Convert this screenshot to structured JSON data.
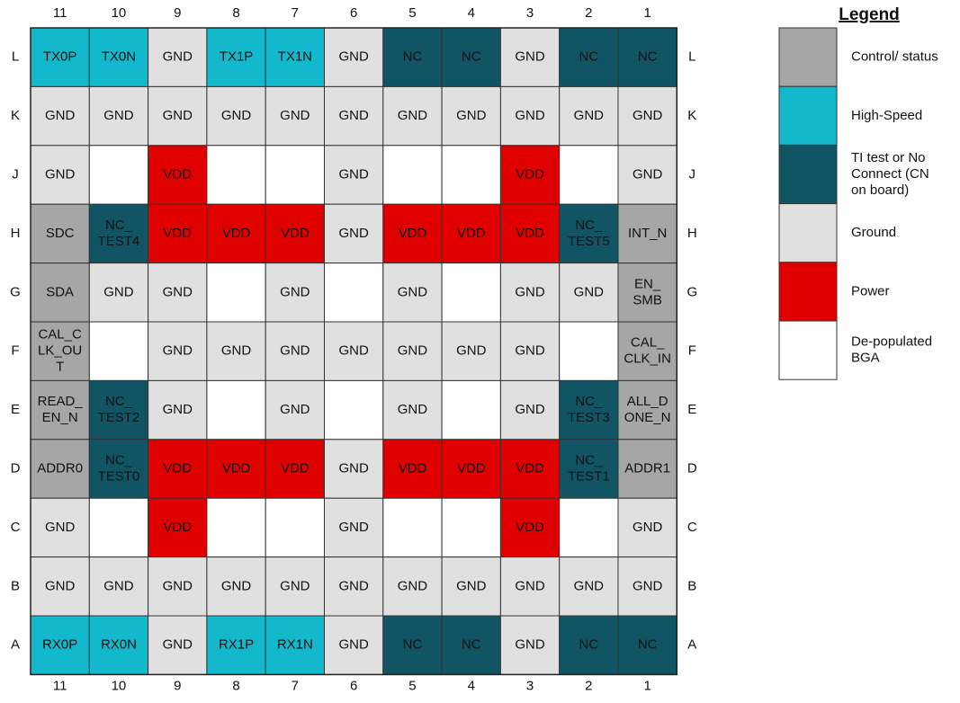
{
  "legend": {
    "title": "Legend",
    "items": [
      {
        "lines": [
          "Control/ status"
        ],
        "color": "#a6a6a6",
        "text_color": "#222222"
      },
      {
        "lines": [
          "High-Speed"
        ],
        "color": "#14b8cc",
        "text_color": "#ffffff"
      },
      {
        "lines": [
          "TI test or No",
          "Connect (CN",
          "on board)"
        ],
        "color": "#115463",
        "text_color": "#ffffff"
      },
      {
        "lines": [
          "Ground"
        ],
        "color": "#e0e0e0",
        "text_color": "#111111"
      },
      {
        "lines": [
          "Power"
        ],
        "color": "#e00000",
        "text_color": "#ffdede"
      },
      {
        "lines": [
          "De-populated",
          "BGA"
        ],
        "color": "#ffffff",
        "text_color": "#111111"
      }
    ]
  },
  "columns": [
    "11",
    "10",
    "9",
    "8",
    "7",
    "6",
    "5",
    "4",
    "3",
    "2",
    "1"
  ],
  "rows": [
    {
      "name": "L",
      "cells": [
        {
          "lines": [
            "TX0P"
          ],
          "legend": 1
        },
        {
          "lines": [
            "TX0N"
          ],
          "legend": 1
        },
        {
          "lines": [
            "GND"
          ],
          "legend": 3
        },
        {
          "lines": [
            "TX1P"
          ],
          "legend": 1
        },
        {
          "lines": [
            "TX1N"
          ],
          "legend": 1
        },
        {
          "lines": [
            "GND"
          ],
          "legend": 3
        },
        {
          "lines": [
            "NC"
          ],
          "legend": 2
        },
        {
          "lines": [
            "NC"
          ],
          "legend": 2
        },
        {
          "lines": [
            "GND"
          ],
          "legend": 3
        },
        {
          "lines": [
            "NC"
          ],
          "legend": 2
        },
        {
          "lines": [
            "NC"
          ],
          "legend": 2
        }
      ]
    },
    {
      "name": "K",
      "cells": [
        {
          "lines": [
            "GND"
          ],
          "legend": 3
        },
        {
          "lines": [
            "GND"
          ],
          "legend": 3
        },
        {
          "lines": [
            "GND"
          ],
          "legend": 3
        },
        {
          "lines": [
            "GND"
          ],
          "legend": 3
        },
        {
          "lines": [
            "GND"
          ],
          "legend": 3
        },
        {
          "lines": [
            "GND"
          ],
          "legend": 3
        },
        {
          "lines": [
            "GND"
          ],
          "legend": 3
        },
        {
          "lines": [
            "GND"
          ],
          "legend": 3
        },
        {
          "lines": [
            "GND"
          ],
          "legend": 3
        },
        {
          "lines": [
            "GND"
          ],
          "legend": 3
        },
        {
          "lines": [
            "GND"
          ],
          "legend": 3
        }
      ]
    },
    {
      "name": "J",
      "cells": [
        {
          "lines": [
            "GND"
          ],
          "legend": 3
        },
        {
          "legend": 5
        },
        {
          "lines": [
            "VDD"
          ],
          "legend": 4
        },
        {
          "legend": 5
        },
        {
          "legend": 5
        },
        {
          "lines": [
            "GND"
          ],
          "legend": 3
        },
        {
          "legend": 5
        },
        {
          "legend": 5
        },
        {
          "lines": [
            "VDD"
          ],
          "legend": 4
        },
        {
          "legend": 5
        },
        {
          "lines": [
            "GND"
          ],
          "legend": 3
        }
      ]
    },
    {
      "name": "H",
      "cells": [
        {
          "lines": [
            "SDC"
          ],
          "legend": 0
        },
        {
          "lines": [
            "NC_",
            "TEST4"
          ],
          "legend": 2
        },
        {
          "lines": [
            "VDD"
          ],
          "legend": 4
        },
        {
          "lines": [
            "VDD"
          ],
          "legend": 4
        },
        {
          "lines": [
            "VDD"
          ],
          "legend": 4
        },
        {
          "lines": [
            "GND"
          ],
          "legend": 3
        },
        {
          "lines": [
            "VDD"
          ],
          "legend": 4
        },
        {
          "lines": [
            "VDD"
          ],
          "legend": 4
        },
        {
          "lines": [
            "VDD"
          ],
          "legend": 4
        },
        {
          "lines": [
            "NC_",
            "TEST5"
          ],
          "legend": 2
        },
        {
          "lines": [
            "INT_N"
          ],
          "legend": 0
        }
      ]
    },
    {
      "name": "G",
      "cells": [
        {
          "lines": [
            "SDA"
          ],
          "legend": 0
        },
        {
          "lines": [
            "GND"
          ],
          "legend": 3
        },
        {
          "lines": [
            "GND"
          ],
          "legend": 3
        },
        {
          "legend": 5
        },
        {
          "lines": [
            "GND"
          ],
          "legend": 3
        },
        {
          "legend": 5
        },
        {
          "lines": [
            "GND"
          ],
          "legend": 3
        },
        {
          "legend": 5
        },
        {
          "lines": [
            "GND"
          ],
          "legend": 3
        },
        {
          "lines": [
            "GND"
          ],
          "legend": 3
        },
        {
          "lines": [
            "EN_",
            "SMB"
          ],
          "legend": 0
        }
      ]
    },
    {
      "name": "F",
      "cells": [
        {
          "lines": [
            "CAL_C",
            "LK_OU",
            "T"
          ],
          "legend": 0
        },
        {
          "legend": 5
        },
        {
          "lines": [
            "GND"
          ],
          "legend": 3
        },
        {
          "lines": [
            "GND"
          ],
          "legend": 3
        },
        {
          "lines": [
            "GND"
          ],
          "legend": 3
        },
        {
          "lines": [
            "GND"
          ],
          "legend": 3
        },
        {
          "lines": [
            "GND"
          ],
          "legend": 3
        },
        {
          "lines": [
            "GND"
          ],
          "legend": 3
        },
        {
          "lines": [
            "GND"
          ],
          "legend": 3
        },
        {
          "legend": 5
        },
        {
          "lines": [
            "CAL_",
            "CLK_IN"
          ],
          "legend": 0
        }
      ]
    },
    {
      "name": "E",
      "cells": [
        {
          "lines": [
            "READ_",
            "EN_N"
          ],
          "legend": 0
        },
        {
          "lines": [
            "NC_",
            "TEST2"
          ],
          "legend": 2
        },
        {
          "lines": [
            "GND"
          ],
          "legend": 3
        },
        {
          "legend": 5
        },
        {
          "lines": [
            "GND"
          ],
          "legend": 3
        },
        {
          "legend": 5
        },
        {
          "lines": [
            "GND"
          ],
          "legend": 3
        },
        {
          "legend": 5
        },
        {
          "lines": [
            "GND"
          ],
          "legend": 3
        },
        {
          "lines": [
            "NC_",
            "TEST3"
          ],
          "legend": 2
        },
        {
          "lines": [
            "ALL_D",
            "ONE_N"
          ],
          "legend": 0
        }
      ]
    },
    {
      "name": "D",
      "cells": [
        {
          "lines": [
            "ADDR0"
          ],
          "legend": 0
        },
        {
          "lines": [
            "NC_",
            "TEST0"
          ],
          "legend": 2
        },
        {
          "lines": [
            "VDD"
          ],
          "legend": 4
        },
        {
          "lines": [
            "VDD"
          ],
          "legend": 4
        },
        {
          "lines": [
            "VDD"
          ],
          "legend": 4
        },
        {
          "lines": [
            "GND"
          ],
          "legend": 3
        },
        {
          "lines": [
            "VDD"
          ],
          "legend": 4
        },
        {
          "lines": [
            "VDD"
          ],
          "legend": 4
        },
        {
          "lines": [
            "VDD"
          ],
          "legend": 4
        },
        {
          "lines": [
            "NC_",
            "TEST1"
          ],
          "legend": 2
        },
        {
          "lines": [
            "ADDR1"
          ],
          "legend": 0
        }
      ]
    },
    {
      "name": "C",
      "cells": [
        {
          "lines": [
            "GND"
          ],
          "legend": 3
        },
        {
          "legend": 5
        },
        {
          "lines": [
            "VDD"
          ],
          "legend": 4
        },
        {
          "legend": 5
        },
        {
          "legend": 5
        },
        {
          "lines": [
            "GND"
          ],
          "legend": 3
        },
        {
          "legend": 5
        },
        {
          "legend": 5
        },
        {
          "lines": [
            "VDD"
          ],
          "legend": 4
        },
        {
          "legend": 5
        },
        {
          "lines": [
            "GND"
          ],
          "legend": 3
        }
      ]
    },
    {
      "name": "B",
      "cells": [
        {
          "lines": [
            "GND"
          ],
          "legend": 3
        },
        {
          "lines": [
            "GND"
          ],
          "legend": 3
        },
        {
          "lines": [
            "GND"
          ],
          "legend": 3
        },
        {
          "lines": [
            "GND"
          ],
          "legend": 3
        },
        {
          "lines": [
            "GND"
          ],
          "legend": 3
        },
        {
          "lines": [
            "GND"
          ],
          "legend": 3
        },
        {
          "lines": [
            "GND"
          ],
          "legend": 3
        },
        {
          "lines": [
            "GND"
          ],
          "legend": 3
        },
        {
          "lines": [
            "GND"
          ],
          "legend": 3
        },
        {
          "lines": [
            "GND"
          ],
          "legend": 3
        },
        {
          "lines": [
            "GND"
          ],
          "legend": 3
        }
      ]
    },
    {
      "name": "A",
      "cells": [
        {
          "lines": [
            "RX0P"
          ],
          "legend": 1
        },
        {
          "lines": [
            "RX0N"
          ],
          "legend": 1
        },
        {
          "lines": [
            "GND"
          ],
          "legend": 3
        },
        {
          "lines": [
            "RX1P"
          ],
          "legend": 1
        },
        {
          "lines": [
            "RX1N"
          ],
          "legend": 1
        },
        {
          "lines": [
            "GND"
          ],
          "legend": 3
        },
        {
          "lines": [
            "NC"
          ],
          "legend": 2
        },
        {
          "lines": [
            "NC"
          ],
          "legend": 2
        },
        {
          "lines": [
            "GND"
          ],
          "legend": 3
        },
        {
          "lines": [
            "NC"
          ],
          "legend": 2
        },
        {
          "lines": [
            "NC"
          ],
          "legend": 2
        }
      ]
    }
  ]
}
